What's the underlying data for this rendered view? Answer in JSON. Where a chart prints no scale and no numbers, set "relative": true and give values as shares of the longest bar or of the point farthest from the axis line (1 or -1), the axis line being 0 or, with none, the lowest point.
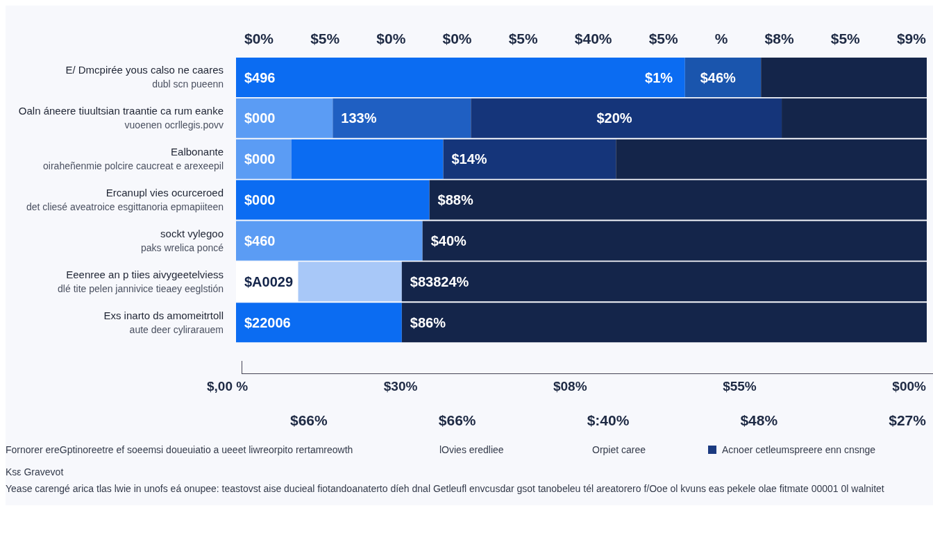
{
  "chart_data": {
    "type": "bar",
    "orientation": "horizontal",
    "stacked": true,
    "relative": true,
    "categories": [
      "E/ Dmcpirée yous calso ne caares\ndubl scn pueenn",
      "Oaln áneere tiuultsian traantie ca rum eanke\nvuoenen ocrllegis.povv",
      "Ealbonante\noiraheñenmie polcire caucreat e arexeepil",
      "Ercanupl vies ocurceroed\ndet cliesé aveatroice esgittanoria epmapiiteen",
      "sockt vylegoo\npaks wrelica poncé",
      "Eeenree an p tiies aivygeetelviess\ndlé tite pelen jannivice tieaey eeglstión",
      "Exs inarto ds amomeitrtoll\naute deer cylirarauem"
    ],
    "series": [
      {
        "values": [
          0.65,
          0.14,
          0.08,
          0.28,
          0.27,
          0.09,
          0.24
        ],
        "colors": [
          "#0b6cf2",
          "#5b9cf4",
          "#5b9cf4",
          "#0b6cf2",
          "#5b9cf4",
          "#ffffff",
          "#0b6cf2"
        ]
      },
      {
        "values": [
          0.11,
          0.2,
          0.22,
          0.72,
          0.73,
          0.15,
          0.76
        ],
        "colors": [
          "#1a55ad",
          "#1f5fc2",
          "#0b6cf2",
          "#14254a",
          "#14254a",
          "#a8c8f8",
          "#14254a"
        ]
      },
      {
        "values": [
          0.24,
          0.45,
          0.25,
          null,
          null,
          0.76,
          null
        ],
        "colors": [
          "#14254a",
          "#15357a",
          "#15357a",
          "#14254a",
          "#14254a",
          "#14254a",
          "#14254a"
        ]
      },
      {
        "values": [
          null,
          0.21,
          0.45,
          null,
          null,
          null,
          null
        ],
        "colors": [
          "#14254a",
          "#14254a",
          "#14254a",
          "#14254a",
          "#14254a",
          "#14254a",
          "#14254a"
        ]
      }
    ],
    "annotations": [
      {
        "text": "$496",
        "x": 0,
        "y": "E/ Dmcpirée yous calso ne caares\ndubl scn pueenn"
      },
      {
        "text": "$1%",
        "x": 0.58,
        "y": "E/ Dmcpirée yous calso ne caares\ndubl scn pueenn"
      },
      {
        "text": "$46%",
        "x": 0.66,
        "y": "E/ Dmcpirée yous calso ne caares\ndubl scn pueenn"
      },
      {
        "text": "$000",
        "x": 0,
        "y": "Oaln áneere tiuultsian traantie ca rum eanke\nvuoenen ocrllegis.povv"
      },
      {
        "text": "133%",
        "x": 0.14,
        "y": "Oaln áneere tiuultsian traantie ca rum eanke\nvuoenen ocrllegis.povv"
      },
      {
        "text": "$20%",
        "x": 0.51,
        "y": "Oaln áneere tiuultsian traantie ca rum eanke\nvuoenen ocrllegis.povv"
      },
      {
        "text": "$000",
        "x": 0,
        "y": "Ealbonante\noiraheñenmie polcire caucreat e arexeepil"
      },
      {
        "text": "$14%",
        "x": 0.3,
        "y": "Ealbonante\noiraheñenmie polcire caucreat e arexeepil"
      },
      {
        "text": "$000",
        "x": 0,
        "y": "Ercanupl vies ocurceroed\ndet cliesé aveatroice esgittanoria epmapiiteen"
      },
      {
        "text": "$88%",
        "x": 0.28,
        "y": "Ercanupl vies ocurceroed\ndet cliesé aveatroice esgittanoria epmapiiteen"
      },
      {
        "text": "$460",
        "x": 0,
        "y": "sockt vylegoo\npaks wrelica poncé"
      },
      {
        "text": "$40%",
        "x": 0.27,
        "y": "sockt vylegoo\npaks wrelica poncé"
      },
      {
        "text": "$A0029",
        "x": 0,
        "y": "Eeenree an p tiies aivygeetelviess\ndlé tite pelen jannivice tieaey eeglstión"
      },
      {
        "text": "$83824%",
        "x": 0.24,
        "y": "Eeenree an p tiies aivygeetelviess\ndlé tite pelen jannivice tieaey eeglstión"
      },
      {
        "text": "$22006",
        "x": 0,
        "y": "Exs inarto ds amomeitrtoll\naute deer cylirarauem"
      },
      {
        "text": "$86%",
        "x": 0.24,
        "y": "Exs inarto ds amomeitrtoll\naute deer cylirarauem"
      },
      "$0%",
      "$5%",
      "$0%",
      "$0%",
      "$5%",
      "$40%",
      "$5%",
      "%",
      "$8%",
      "$5%",
      "$9%",
      "$,00 %",
      "$30%",
      "$08%",
      "$55%",
      "$00%",
      "$66%",
      "$66%",
      "$:40%",
      "$48%",
      "$27%",
      "Fornorer ereGptinoreetre ef soeemsi doueuiatio a ueeet liwreorpito rertamreowth",
      "lOvies eredliee",
      "Orpiet caree",
      "Acnoer cetleumspreere enn cnsnge",
      "Ksε Gravevot",
      "Yease carengé arica tlas lwie in unofs eá onupee: teastovst aise ducieal fiotandoanaterto díeh dnal Getleufl envcusdar gsot tanobeleu tél areatorero f/Ooe ol kvuns eas pekele olae fitmate 00001 0l walnitet"
    ]
  }
}
